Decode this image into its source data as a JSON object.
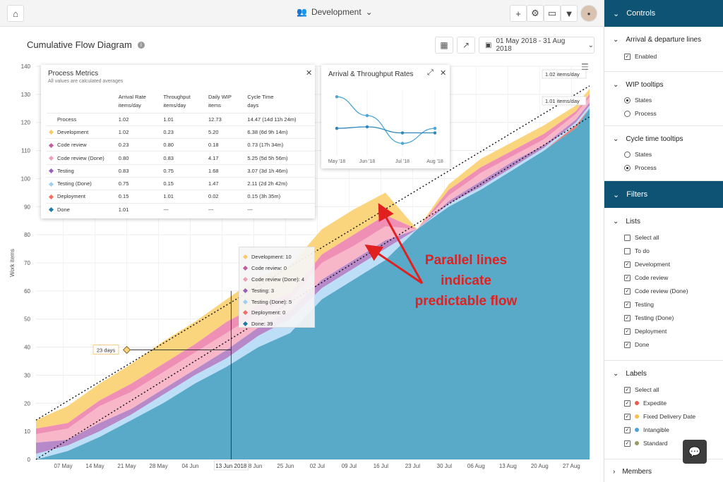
{
  "topbar": {
    "board": "Development",
    "icons": [
      "home-icon",
      "users-icon",
      "plus-icon",
      "gear-icon",
      "monitor-icon",
      "filter-icon",
      "avatar"
    ]
  },
  "chart": {
    "title": "Cumulative Flow Diagram",
    "date_range": "01 May 2018 - 31 Aug 2018",
    "crosshair_label": "13 Jun 2018",
    "days_label": "23 days",
    "rate_label_top": "1.02 items/day",
    "rate_label_bottom": "1.01 items/day",
    "callout": [
      "Parallel lines",
      "indicate",
      "predictable flow"
    ]
  },
  "chart_data": {
    "type": "area",
    "stacked": true,
    "title": "Cumulative Flow Diagram",
    "xlabel": "",
    "ylabel": "Work items",
    "ylim": [
      0,
      140
    ],
    "yticks": [
      0,
      10,
      20,
      30,
      40,
      50,
      60,
      70,
      80,
      90,
      100,
      110,
      120,
      130,
      140
    ],
    "xticks": [
      "07 May",
      "14 May",
      "21 May",
      "28 May",
      "04 Jun",
      "11 Jun",
      "18 Jun",
      "25 Jun",
      "02 Jul",
      "09 Jul",
      "16 Jul",
      "23 Jul",
      "30 Jul",
      "06 Aug",
      "13 Aug",
      "20 Aug",
      "27 Aug"
    ],
    "x_days": [
      0,
      7,
      14,
      21,
      28,
      35,
      42,
      49,
      56,
      63,
      70,
      77,
      84,
      91,
      98,
      105,
      112,
      119,
      122
    ],
    "series": [
      {
        "name": "Done",
        "color": "#59a9c9",
        "values": [
          0,
          3,
          8,
          14,
          20,
          27,
          33,
          40,
          45,
          57,
          64,
          71,
          82,
          90,
          96,
          103,
          110,
          118,
          125
        ]
      },
      {
        "name": "Deployment",
        "color": "#ee7e74",
        "values": [
          0,
          0,
          0,
          0,
          0,
          0,
          0,
          0,
          0,
          0,
          0,
          0,
          0,
          0,
          0,
          0,
          0,
          1,
          0
        ]
      },
      {
        "name": "Testing (Done)",
        "color": "#bcdff7",
        "values": [
          2,
          2,
          2,
          2,
          3,
          3,
          3,
          4,
          5,
          4,
          4,
          4,
          0,
          1,
          1,
          1,
          1,
          1,
          1
        ]
      },
      {
        "name": "Testing",
        "color": "#b889c8",
        "values": [
          4,
          2,
          3,
          2,
          2,
          2,
          3,
          3,
          3,
          3,
          3,
          3,
          0,
          1,
          2,
          2,
          1,
          1,
          1
        ]
      },
      {
        "name": "Code review (Done)",
        "color": "#f7b7c9",
        "values": [
          3,
          4,
          6,
          6,
          6,
          6,
          6,
          5,
          4,
          6,
          5,
          5,
          0,
          2,
          3,
          2,
          2,
          2,
          2
        ]
      },
      {
        "name": "Code review",
        "color": "#ef8fb6",
        "values": [
          2,
          2,
          2,
          3,
          3,
          3,
          4,
          3,
          2,
          3,
          4,
          4,
          0,
          2,
          2,
          2,
          2,
          1,
          1
        ]
      },
      {
        "name": "Development",
        "color": "#fbd47e",
        "values": [
          3,
          6,
          6,
          7,
          8,
          8,
          8,
          10,
          10,
          9,
          9,
          8,
          0,
          2,
          3,
          3,
          3,
          2,
          2
        ]
      }
    ],
    "trend_lines": [
      {
        "label": "1.02 items/day",
        "from": [
          0,
          14
        ],
        "to": [
          122,
          133
        ]
      },
      {
        "label": "1.01 items/day",
        "from": [
          0,
          0
        ],
        "to": [
          122,
          122
        ]
      }
    ]
  },
  "process_metrics": {
    "title": "Process Metrics",
    "subtitle": "All values are calculated averages",
    "headers": [
      [
        "",
        ""
      ],
      [
        "Arrival Rate",
        "items/day"
      ],
      [
        "Throughput",
        "items/day"
      ],
      [
        "Daily WIP",
        "items"
      ],
      [
        "Cycle Time",
        "days"
      ]
    ],
    "rows": [
      {
        "name": "Process",
        "color": "",
        "arrival": "1.02",
        "throughput": "1.01",
        "wip": "12.73",
        "cycle": "14.47 (14d 11h 24m)"
      },
      {
        "name": "Development",
        "color": "#fbc96a",
        "arrival": "1.02",
        "throughput": "0.23",
        "wip": "5.20",
        "cycle": "6.38 (6d 9h 14m)"
      },
      {
        "name": "Code review",
        "color": "#c45ca0",
        "arrival": "0.23",
        "throughput": "0.80",
        "wip": "0.18",
        "cycle": "0.73 (17h 34m)"
      },
      {
        "name": "Code review (Done)",
        "color": "#f0a0b4",
        "arrival": "0.80",
        "throughput": "0.83",
        "wip": "4.17",
        "cycle": "5.25 (5d 5h 56m)"
      },
      {
        "name": "Testing",
        "color": "#9b5fb3",
        "arrival": "0.83",
        "throughput": "0.75",
        "wip": "1.68",
        "cycle": "3.07 (3d 1h 46m)"
      },
      {
        "name": "Testing (Done)",
        "color": "#9fd0f2",
        "arrival": "0.75",
        "throughput": "0.15",
        "wip": "1.47",
        "cycle": "2.11 (2d 2h 42m)"
      },
      {
        "name": "Deployment",
        "color": "#ee6f64",
        "arrival": "0.15",
        "throughput": "1.01",
        "wip": "0.02",
        "cycle": "0.15 (3h 35m)"
      },
      {
        "name": "Done",
        "color": "#1f7ca6",
        "arrival": "1.01",
        "throughput": "---",
        "wip": "---",
        "cycle": "---"
      }
    ]
  },
  "arrival_throughput": {
    "title": "Arrival & Throughput Rates",
    "x": [
      "May '18",
      "Jun '18",
      "Jul '18",
      "Aug '18"
    ],
    "arrival": [
      1.4,
      1.15,
      0.78,
      0.98
    ],
    "throughput": [
      0.98,
      1.0,
      0.92,
      0.92
    ]
  },
  "tooltip": {
    "rows": [
      {
        "text": "Development: 10",
        "color": "#fbc96a"
      },
      {
        "text": "Code review: 0",
        "color": "#c45ca0"
      },
      {
        "text": "Code review (Done): 4",
        "color": "#f0a0b4"
      },
      {
        "text": "Testing: 3",
        "color": "#9b5fb3"
      },
      {
        "text": "Testing (Done): 5",
        "color": "#9fd0f2"
      },
      {
        "text": "Deployment: 0",
        "color": "#ee6f64"
      },
      {
        "text": "Done: 39",
        "color": "#1f7ca6"
      }
    ]
  },
  "sidebar": {
    "controls_title": "Controls",
    "arrival_title": "Arrival & departure lines",
    "arrival_enabled": "Enabled",
    "wip_title": "WIP tooltips",
    "wip_states": "States",
    "wip_process": "Process",
    "cycle_title": "Cycle time tooltips",
    "cycle_states": "States",
    "cycle_process": "Process",
    "filters_title": "Filters",
    "lists_title": "Lists",
    "lists": [
      {
        "label": "Select all",
        "checked": false
      },
      {
        "label": "To do",
        "checked": false
      },
      {
        "label": "Development",
        "checked": true
      },
      {
        "label": "Code review",
        "checked": true
      },
      {
        "label": "Code review (Done)",
        "checked": true
      },
      {
        "label": "Testing",
        "checked": true
      },
      {
        "label": "Testing (Done)",
        "checked": true
      },
      {
        "label": "Deployment",
        "checked": true
      },
      {
        "label": "Done",
        "checked": true
      }
    ],
    "labels_title": "Labels",
    "labels": [
      {
        "label": "Select all",
        "checked": true,
        "color": ""
      },
      {
        "label": "Expedite",
        "checked": true,
        "color": "#ee5a4f"
      },
      {
        "label": "Fixed Delivery Date",
        "checked": true,
        "color": "#f6c04a"
      },
      {
        "label": "Intangible",
        "checked": true,
        "color": "#4aa3df"
      },
      {
        "label": "Standard",
        "checked": true,
        "color": "#9a9a6a"
      }
    ],
    "members_title": "Members"
  }
}
